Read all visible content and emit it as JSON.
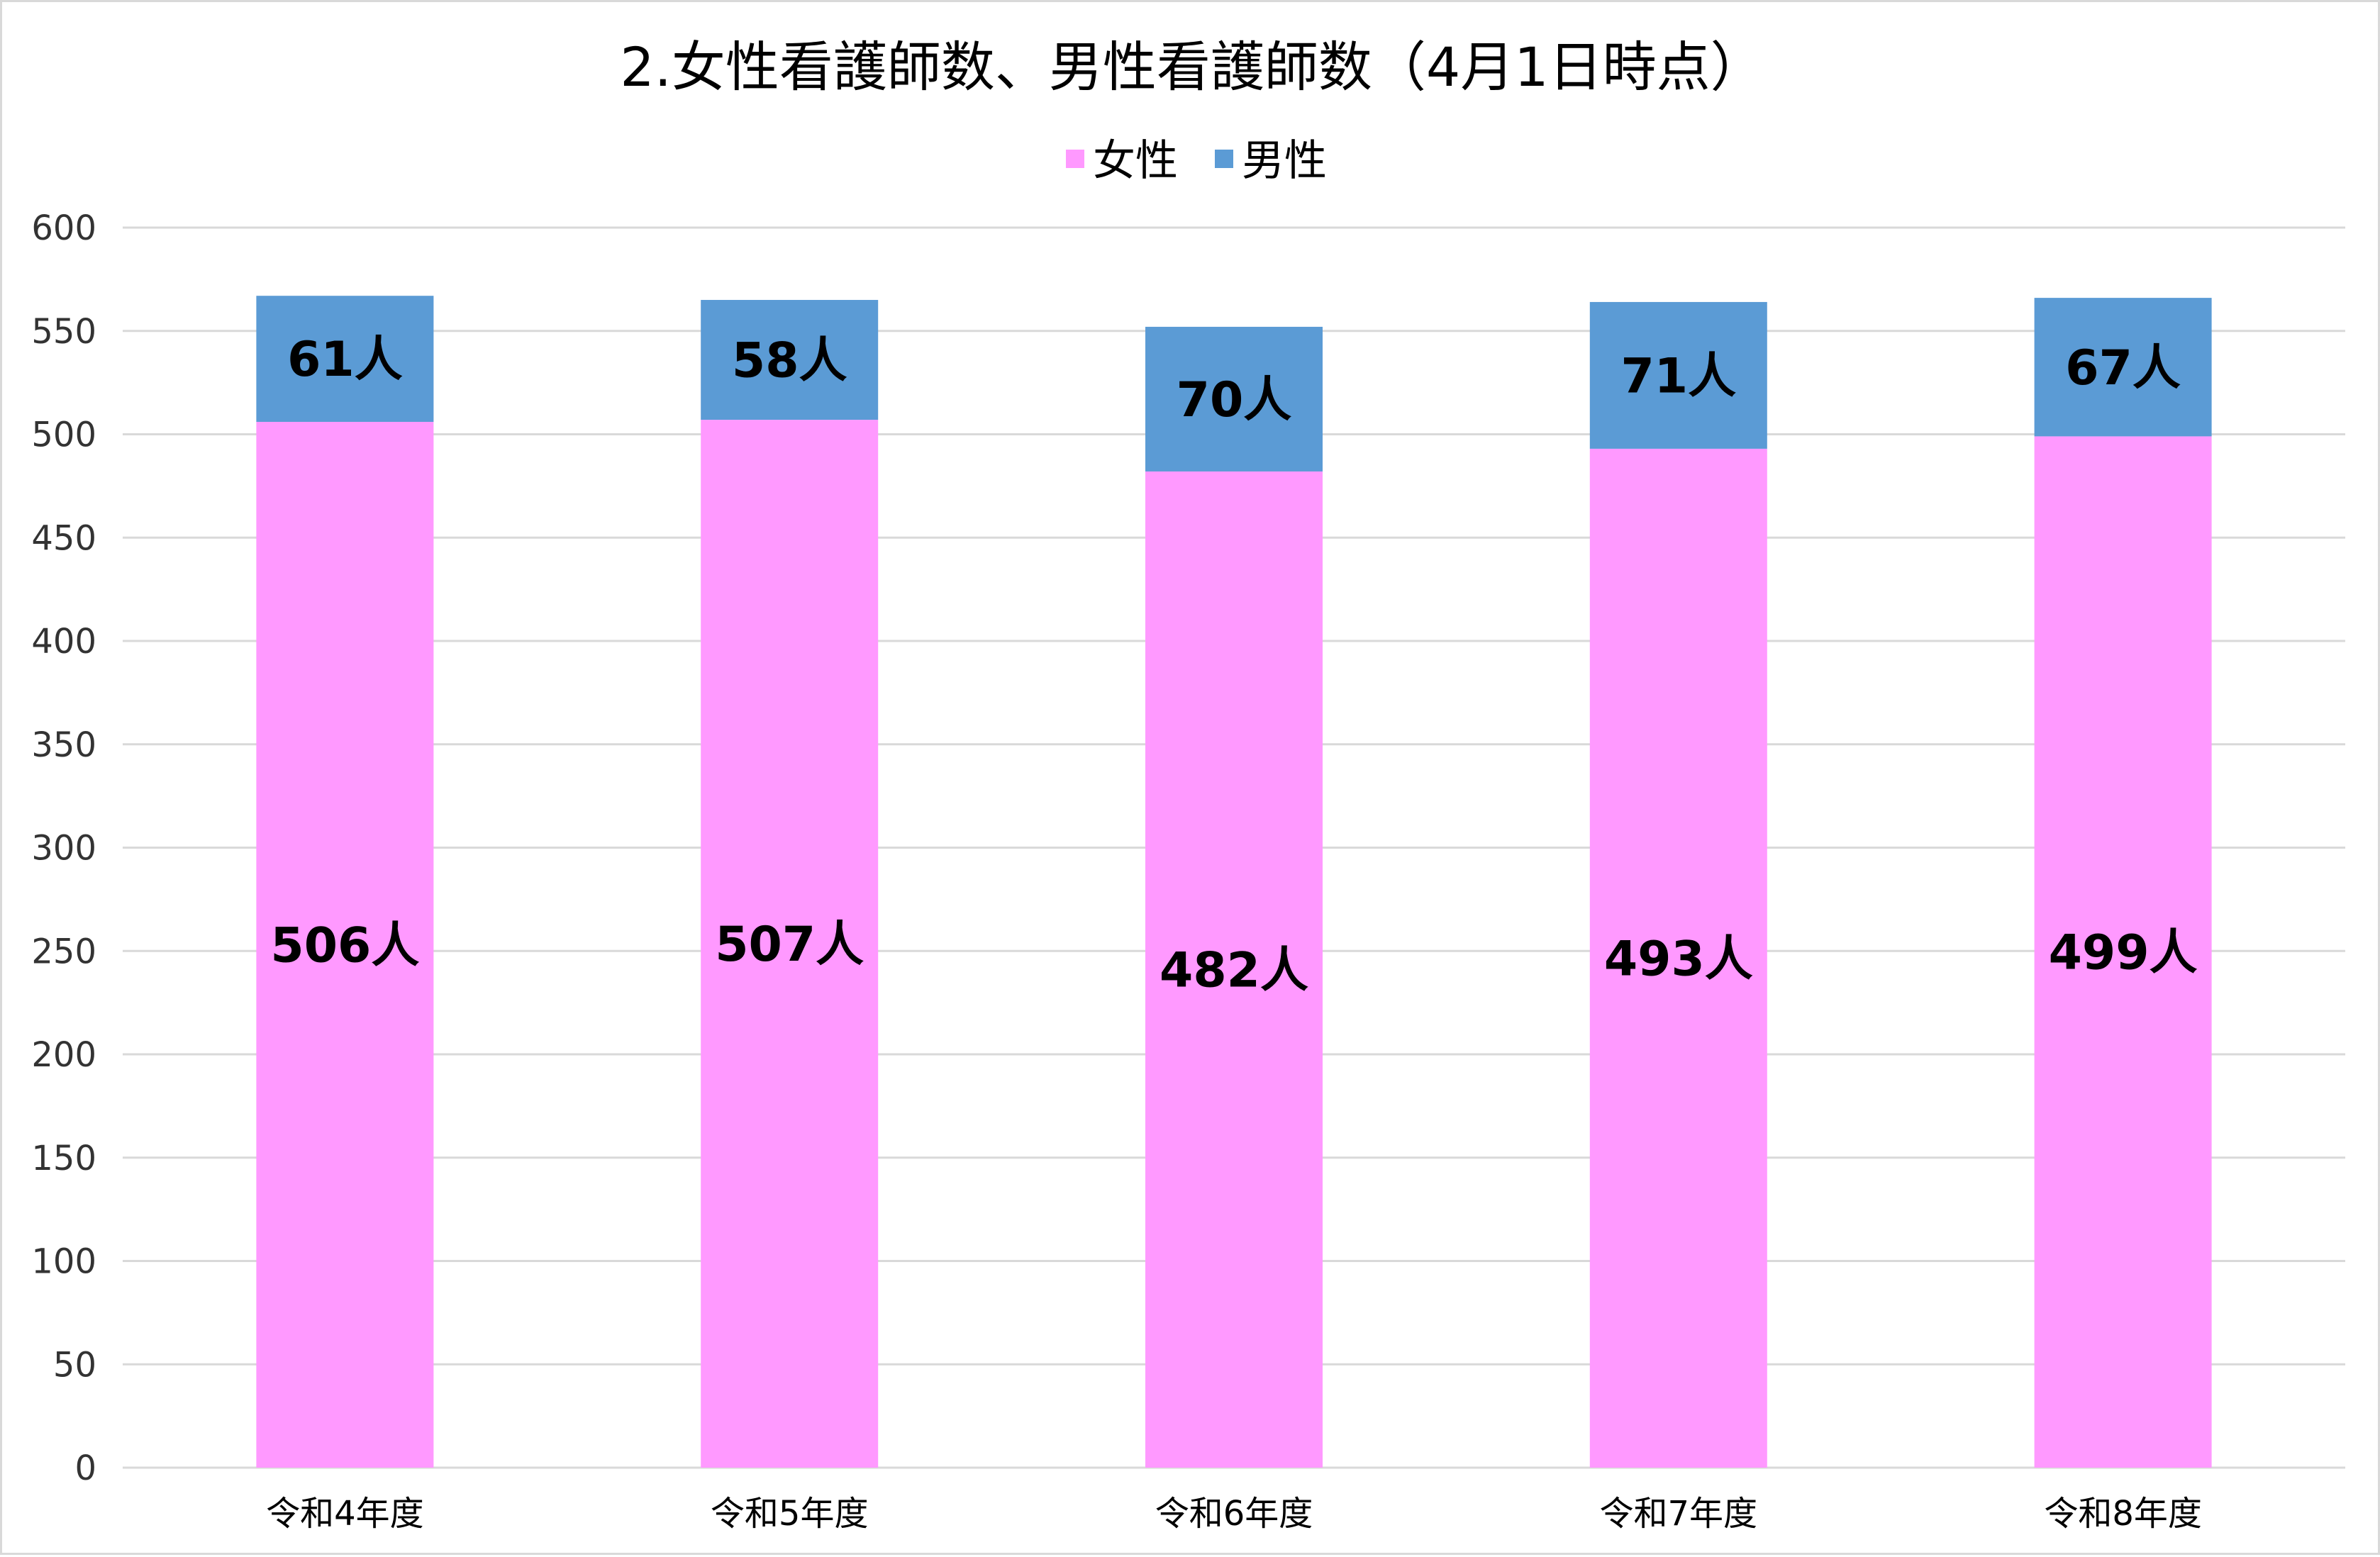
{
  "chart_data": {
    "type": "bar",
    "stacked": true,
    "title": "2.女性看護師数、男性看護師数（4月1日時点）",
    "xlabel": "",
    "ylabel": "",
    "categories": [
      "令和4年度",
      "令和5年度",
      "令和6年度",
      "令和7年度",
      "令和8年度"
    ],
    "series": [
      {
        "name": "女性",
        "color": "#ff99ff",
        "values": [
          506,
          507,
          482,
          493,
          499
        ],
        "labels": [
          "506人",
          "507人",
          "482人",
          "493人",
          "499人"
        ]
      },
      {
        "name": "男性",
        "color": "#5b9bd5",
        "values": [
          61,
          58,
          70,
          71,
          67
        ],
        "labels": [
          "61人",
          "58人",
          "70人",
          "71人",
          "67人"
        ]
      }
    ],
    "ylim": [
      0,
      600
    ],
    "yticks": [
      0,
      50,
      100,
      150,
      200,
      250,
      300,
      350,
      400,
      450,
      500,
      550,
      600
    ],
    "grid": true,
    "legend_position": "top-center"
  }
}
